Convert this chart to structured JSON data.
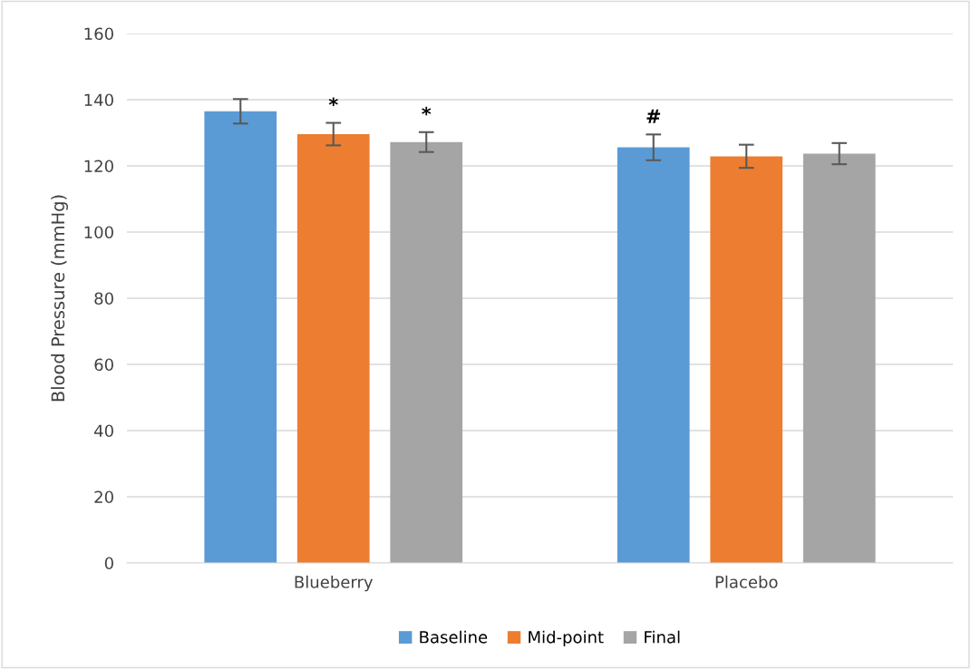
{
  "chart_data": {
    "type": "bar",
    "ylabel": "Blood Pressure (mmHg)",
    "categories": [
      "Blueberry",
      "Placebo"
    ],
    "series": [
      {
        "name": "Baseline",
        "color": "#5b9bd5",
        "values": [
          136.5,
          125.6
        ],
        "errors": [
          3.7,
          3.9
        ],
        "value_labels": [
          null,
          "#"
        ]
      },
      {
        "name": "Mid-point",
        "color": "#ed7d31",
        "values": [
          129.6,
          122.9
        ],
        "errors": [
          3.4,
          3.5
        ],
        "value_labels": [
          "*",
          null
        ]
      },
      {
        "name": "Final",
        "color": "#a5a5a5",
        "values": [
          127.2,
          123.7
        ],
        "errors": [
          3.0,
          3.2
        ],
        "value_labels": [
          "*",
          null
        ]
      }
    ],
    "ylim": [
      0,
      160
    ],
    "yticks": [
      0,
      20,
      40,
      60,
      80,
      100,
      120,
      140,
      160
    ],
    "grid": "y",
    "legend": "bottom"
  }
}
